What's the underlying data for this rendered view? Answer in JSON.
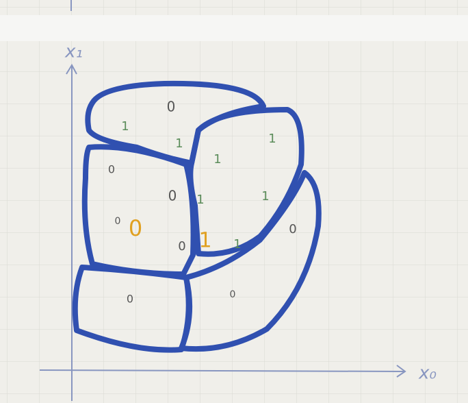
{
  "axes": {
    "y_label": "x₁",
    "x_label": "x₀"
  },
  "labels": [
    {
      "text": "0",
      "color": "#555555"
    },
    {
      "text": "1",
      "color": "#5b8c5a"
    },
    {
      "text": "1",
      "color": "#5b8c5a"
    },
    {
      "text": "1",
      "color": "#5b8c5a"
    },
    {
      "text": "1",
      "color": "#5b8c5a"
    },
    {
      "text": "0",
      "color": "#555555"
    },
    {
      "text": "0",
      "color": "#555555"
    },
    {
      "text": "1",
      "color": "#5b8c5a"
    },
    {
      "text": "1",
      "color": "#5b8c5a"
    },
    {
      "text": "0",
      "color": "#555555"
    },
    {
      "text": "0",
      "color": "#e0a020"
    },
    {
      "text": "0",
      "color": "#555555"
    },
    {
      "text": "1",
      "color": "#e0a020"
    },
    {
      "text": "1",
      "color": "#5b8c5a"
    },
    {
      "text": "0",
      "color": "#555555"
    },
    {
      "text": "0",
      "color": "#555555"
    },
    {
      "text": "0",
      "color": "#555555"
    }
  ]
}
